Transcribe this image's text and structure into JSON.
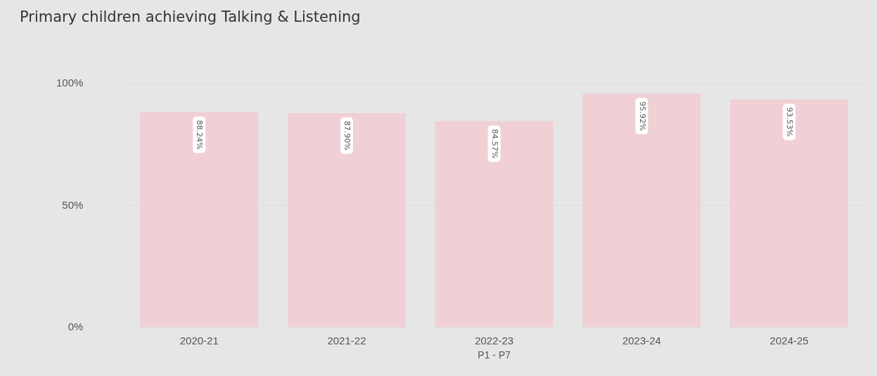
{
  "chart_data": {
    "type": "bar",
    "title": "Primary children achieving Talking & Listening",
    "xlabel": "P1 - P7",
    "categories": [
      "2020-21",
      "2021-22",
      "2022-23",
      "2023-24",
      "2024-25"
    ],
    "values": [
      88.24,
      87.9,
      84.57,
      95.92,
      93.53
    ],
    "value_labels": [
      "88.24%",
      "87.90%",
      "84.57%",
      "95.92%",
      "93.53%"
    ],
    "color": "#f0cfd5",
    "ylim": [
      0,
      100
    ],
    "yticks": [
      {
        "value": 0,
        "label": "0%"
      },
      {
        "value": 50,
        "label": "50%"
      },
      {
        "value": 100,
        "label": "100%"
      }
    ],
    "grid": "y",
    "legend": false
  }
}
